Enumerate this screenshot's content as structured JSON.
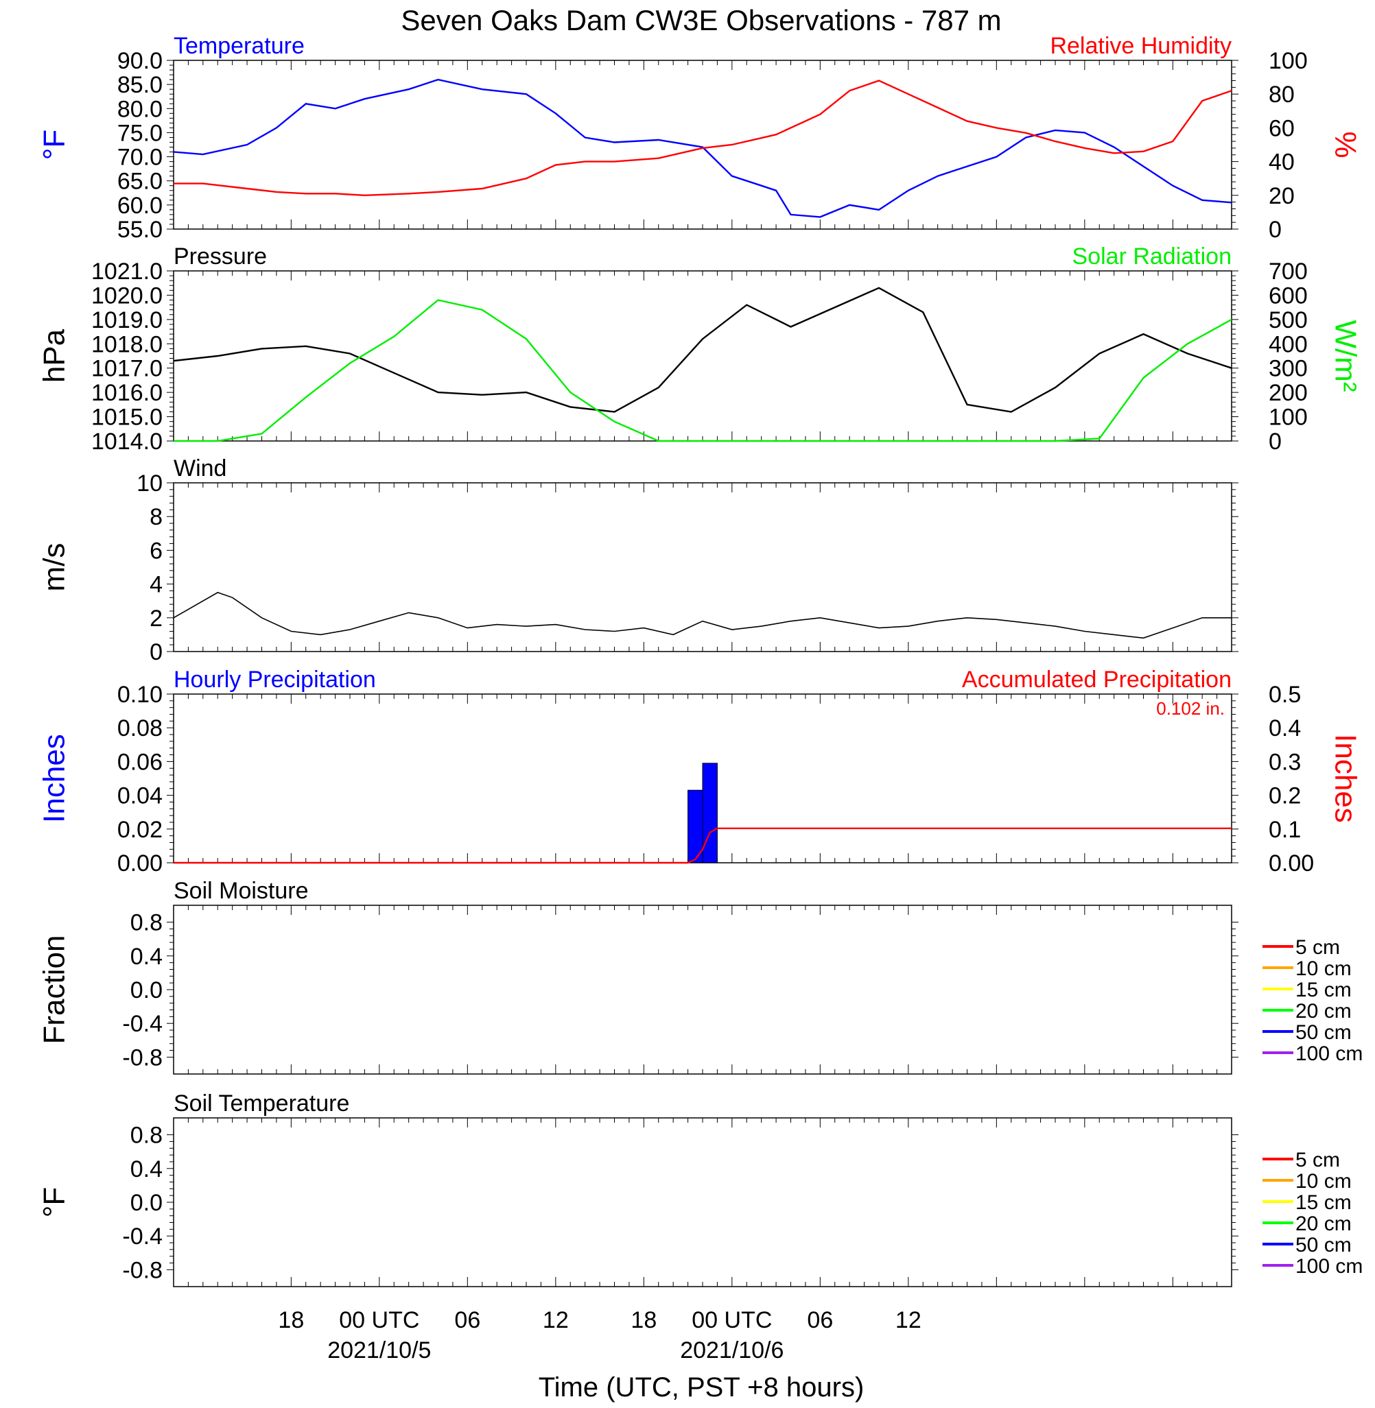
{
  "title": "Seven Oaks Dam CW3E Observations - 787 m",
  "xlabel": "Time (UTC, PST +8 hours)",
  "x_ticks": [
    {
      "label": "18",
      "sub": ""
    },
    {
      "label": "00 UTC",
      "sub": "2021/10/5"
    },
    {
      "label": "06",
      "sub": ""
    },
    {
      "label": "12",
      "sub": ""
    },
    {
      "label": "18",
      "sub": ""
    },
    {
      "label": "00 UTC",
      "sub": "2021/10/6"
    },
    {
      "label": "06",
      "sub": ""
    },
    {
      "label": "12",
      "sub": ""
    }
  ],
  "colors": {
    "blue": "#0000ff",
    "red": "#ff0000",
    "green": "#00ee00",
    "black": "#000000"
  },
  "chart_data": [
    {
      "id": "temp_rh",
      "type": "line",
      "title_left": "Temperature",
      "title_right": "Relative Humidity",
      "ylabel_left": "°F",
      "ylabel_right": "%",
      "ylim_left": [
        55,
        90
      ],
      "ylim_right": [
        0,
        100
      ],
      "yticks_left": [
        "55.0",
        "60.0",
        "65.0",
        "70.0",
        "75.0",
        "80.0",
        "85.0",
        "90.0"
      ],
      "yticks_right": [
        "0",
        "20",
        "40",
        "60",
        "80",
        "100"
      ],
      "x_hours": [
        0,
        2,
        5,
        7,
        9,
        11,
        13,
        16,
        18,
        21,
        24,
        26,
        28,
        30,
        33,
        36,
        38,
        40,
        41,
        42,
        44,
        46,
        48,
        50,
        52,
        54,
        56,
        58,
        60,
        62,
        64,
        66,
        68,
        70,
        72
      ],
      "series": [
        {
          "name": "Temperature",
          "axis": "left",
          "color": "blue",
          "values": [
            71,
            70.5,
            72.5,
            76,
            81,
            80,
            82,
            84,
            86,
            84,
            83,
            79,
            74,
            73,
            73.5,
            72,
            66,
            64,
            63,
            58,
            57.5,
            60,
            59,
            63,
            66,
            68,
            70,
            74,
            75.5,
            75,
            72,
            68,
            64,
            61,
            60.5
          ]
        },
        {
          "name": "Relative Humidity",
          "axis": "right",
          "color": "red",
          "values": [
            27,
            27,
            24,
            22,
            21,
            21,
            20,
            21,
            22,
            24,
            30,
            38,
            40,
            40,
            42,
            48,
            50,
            54,
            56,
            60,
            68,
            82,
            88,
            80,
            72,
            64,
            60,
            57,
            52,
            48,
            45,
            46,
            52,
            76,
            82
          ]
        }
      ]
    },
    {
      "id": "pres_solar",
      "type": "line",
      "title_left": "Pressure",
      "title_right": "Solar Radiation",
      "ylabel_left": "hPa",
      "ylabel_right": "W/m²",
      "ylim_left": [
        1014,
        1021
      ],
      "ylim_right": [
        0,
        700
      ],
      "yticks_left": [
        "1014.0",
        "1015.0",
        "1016.0",
        "1017.0",
        "1018.0",
        "1019.0",
        "1020.0",
        "1021.0"
      ],
      "yticks_right": [
        "0",
        "100",
        "200",
        "300",
        "400",
        "500",
        "600",
        "700"
      ],
      "x_hours": [
        0,
        3,
        6,
        9,
        12,
        15,
        18,
        21,
        24,
        27,
        30,
        33,
        36,
        39,
        42,
        45,
        48,
        51,
        54,
        57,
        60,
        63,
        66,
        69,
        72
      ],
      "series": [
        {
          "name": "Pressure",
          "axis": "left",
          "color": "black",
          "values": [
            1017.3,
            1017.5,
            1017.8,
            1017.9,
            1017.6,
            1016.8,
            1016.0,
            1015.9,
            1016.0,
            1015.4,
            1015.2,
            1016.2,
            1018.2,
            1019.6,
            1018.7,
            1019.5,
            1020.3,
            1019.3,
            1015.5,
            1015.2,
            1016.2,
            1017.6,
            1018.4,
            1017.6,
            1017.0
          ]
        },
        {
          "name": "Solar Radiation",
          "axis": "right",
          "color": "green",
          "values": [
            0,
            0,
            30,
            180,
            320,
            430,
            580,
            540,
            420,
            200,
            80,
            0,
            0,
            0,
            0,
            0,
            0,
            0,
            0,
            0,
            0,
            10,
            260,
            400,
            500
          ]
        }
      ]
    },
    {
      "id": "wind",
      "type": "line",
      "title_left": "Wind",
      "ylabel_left": "m/s",
      "ylim_left": [
        0,
        10
      ],
      "yticks_left": [
        "0",
        "2",
        "4",
        "6",
        "8",
        "10"
      ],
      "x_hours": [
        0,
        3,
        4,
        6,
        8,
        10,
        12,
        14,
        16,
        18,
        20,
        22,
        24,
        26,
        28,
        30,
        32,
        34,
        36,
        38,
        40,
        42,
        44,
        46,
        48,
        50,
        52,
        54,
        56,
        58,
        60,
        62,
        64,
        66,
        68,
        70,
        72
      ],
      "series": [
        {
          "name": "Wind speed",
          "axis": "left",
          "color": "black",
          "values": [
            2.0,
            3.5,
            3.2,
            2.0,
            1.2,
            1.0,
            1.3,
            1.8,
            2.3,
            2.0,
            1.4,
            1.6,
            1.5,
            1.6,
            1.3,
            1.2,
            1.4,
            1.0,
            1.8,
            1.3,
            1.5,
            1.8,
            2.0,
            1.7,
            1.4,
            1.5,
            1.8,
            2.0,
            1.9,
            1.7,
            1.5,
            1.2,
            1.0,
            0.8,
            1.4,
            2.0,
            2.0
          ]
        }
      ]
    },
    {
      "id": "precip",
      "type": "bar",
      "title_left": "Hourly Precipitation",
      "title_right": "Accumulated Precipitation",
      "annotation": "0.102 in.",
      "ylabel_left": "Inches",
      "ylabel_right": "Inches",
      "ylim_left": [
        0,
        0.1
      ],
      "ylim_right": [
        0,
        0.5
      ],
      "yticks_left": [
        "0.00",
        "0.02",
        "0.04",
        "0.06",
        "0.08",
        "0.10"
      ],
      "yticks_right": [
        "0.00",
        "0.1",
        "0.2",
        "0.3",
        "0.4",
        "0.5"
      ],
      "bars": [
        {
          "x_start": 35,
          "x_end": 36,
          "value": 0.043
        },
        {
          "x_start": 36,
          "x_end": 37,
          "value": 0.059
        }
      ],
      "series": [
        {
          "name": "Accumulated Precipitation",
          "axis": "right",
          "color": "red",
          "x_hours": [
            0,
            35,
            35.5,
            36,
            36.5,
            37,
            72
          ],
          "values": [
            0,
            0,
            0.01,
            0.04,
            0.09,
            0.102,
            0.102
          ]
        }
      ]
    },
    {
      "id": "soil_moist",
      "type": "line",
      "title_left": "Soil Moisture",
      "ylabel_left": "Fraction",
      "ylim_left": [
        -1,
        1
      ],
      "yticks_left": [
        "-0.8",
        "-0.4",
        "0.0",
        "0.4",
        "0.8"
      ],
      "legend": [
        {
          "label": "5 cm",
          "color": "#ff0000"
        },
        {
          "label": "10 cm",
          "color": "#ffa500"
        },
        {
          "label": "15 cm",
          "color": "#ffff00"
        },
        {
          "label": "20 cm",
          "color": "#00ff00"
        },
        {
          "label": "50 cm",
          "color": "#0000ff"
        },
        {
          "label": "100 cm",
          "color": "#a020f0"
        }
      ]
    },
    {
      "id": "soil_temp",
      "type": "line",
      "title_left": "Soil Temperature",
      "ylabel_left": "°F",
      "ylim_left": [
        -1,
        1
      ],
      "yticks_left": [
        "-0.8",
        "-0.4",
        "0.0",
        "0.4",
        "0.8"
      ],
      "legend": [
        {
          "label": "5 cm",
          "color": "#ff0000"
        },
        {
          "label": "10 cm",
          "color": "#ffa500"
        },
        {
          "label": "15 cm",
          "color": "#ffff00"
        },
        {
          "label": "20 cm",
          "color": "#00ff00"
        },
        {
          "label": "50 cm",
          "color": "#0000ff"
        },
        {
          "label": "100 cm",
          "color": "#a020f0"
        }
      ]
    }
  ]
}
